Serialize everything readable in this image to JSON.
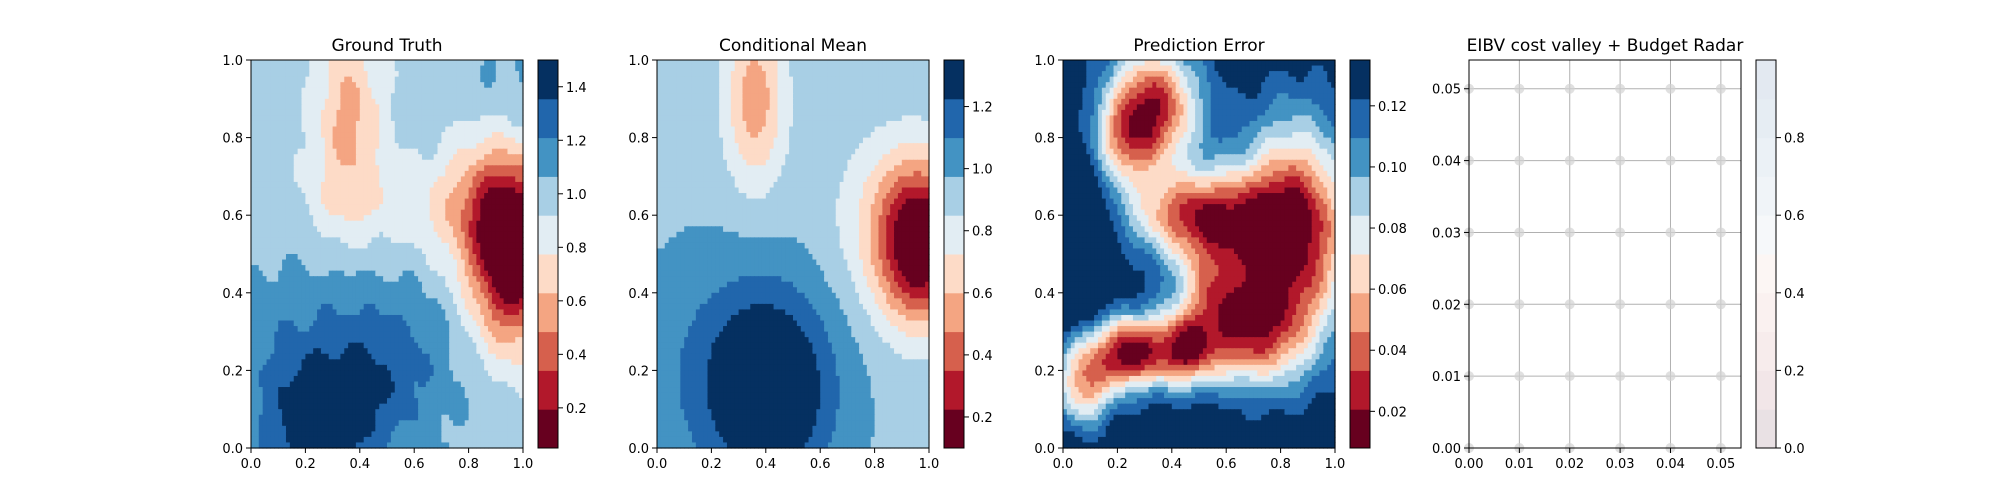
{
  "colormap": [
    "#67001f",
    "#b2182b",
    "#d6604d",
    "#f4a582",
    "#fddbc7",
    "#e2edf3",
    "#a8cfe5",
    "#4393c3",
    "#2166ac",
    "#053061"
  ],
  "chart_data": [
    {
      "type": "heatmap",
      "title": "Ground Truth",
      "xlim": [
        0,
        1
      ],
      "ylim": [
        0,
        1
      ],
      "xticks": [
        0.0,
        0.2,
        0.4,
        0.6,
        0.8,
        1.0
      ],
      "yticks": [
        0.0,
        0.2,
        0.4,
        0.6,
        0.8,
        1.0
      ],
      "xtick_labels": [
        "0.0",
        "0.2",
        "0.4",
        "0.6",
        "0.8",
        "1.0"
      ],
      "ytick_labels": [
        "0.0",
        "0.2",
        "0.4",
        "0.6",
        "0.8",
        "1.0"
      ],
      "field": {
        "base": 1.0,
        "trend_x": 0.0,
        "trend_y": 0.0,
        "bumps": [
          {
            "x": 0.96,
            "y": 0.5,
            "sx": 0.1,
            "sy": 0.16,
            "a": -1.05
          },
          {
            "x": 0.84,
            "y": 0.62,
            "sx": 0.12,
            "sy": 0.14,
            "a": -0.3
          },
          {
            "x": 0.36,
            "y": 0.85,
            "sx": 0.09,
            "sy": 0.17,
            "a": -0.42
          },
          {
            "x": 0.55,
            "y": 0.62,
            "sx": 0.3,
            "sy": 0.08,
            "a": -0.16
          },
          {
            "x": 0.25,
            "y": 0.05,
            "sx": 0.13,
            "sy": 0.12,
            "a": 0.45
          },
          {
            "x": 0.48,
            "y": 0.2,
            "sx": 0.18,
            "sy": 0.16,
            "a": 0.3
          },
          {
            "x": 0.1,
            "y": 0.25,
            "sx": 0.18,
            "sy": 0.18,
            "a": 0.15
          },
          {
            "x": 0.95,
            "y": 0.95,
            "sx": 0.1,
            "sy": 0.12,
            "a": 0.1
          }
        ],
        "noise": 0.04
      },
      "colorbar": {
        "vmin": 0.05,
        "vmax": 1.5,
        "ticks": [
          0.2,
          0.4,
          0.6,
          0.8,
          1.0,
          1.2,
          1.4
        ],
        "tick_labels": [
          "0.2",
          "0.4",
          "0.6",
          "0.8",
          "1.0",
          "1.2",
          "1.4"
        ]
      }
    },
    {
      "type": "heatmap",
      "title": "Conditional Mean",
      "xlim": [
        0,
        1
      ],
      "ylim": [
        0,
        1
      ],
      "xticks": [
        0.0,
        0.2,
        0.4,
        0.6,
        0.8,
        1.0
      ],
      "yticks": [
        0.0,
        0.2,
        0.4,
        0.6,
        0.8,
        1.0
      ],
      "xtick_labels": [
        "0.0",
        "0.2",
        "0.4",
        "0.6",
        "0.8",
        "1.0"
      ],
      "ytick_labels": [
        "0.0",
        "0.2",
        "0.4",
        "0.6",
        "0.8",
        "1.0"
      ],
      "field": {
        "base": 0.95,
        "trend_x": 0.0,
        "trend_y": 0.0,
        "bumps": [
          {
            "x": 0.97,
            "y": 0.52,
            "sx": 0.11,
            "sy": 0.14,
            "a": -0.85
          },
          {
            "x": 0.86,
            "y": 0.6,
            "sx": 0.16,
            "sy": 0.16,
            "a": -0.2
          },
          {
            "x": 0.36,
            "y": 0.9,
            "sx": 0.08,
            "sy": 0.16,
            "a": -0.42
          },
          {
            "x": 0.42,
            "y": 0.15,
            "sx": 0.16,
            "sy": 0.18,
            "a": 0.48
          },
          {
            "x": 0.2,
            "y": 0.2,
            "sx": 0.2,
            "sy": 0.2,
            "a": 0.12
          }
        ],
        "noise": 0.0
      },
      "colorbar": {
        "vmin": 0.1,
        "vmax": 1.35,
        "ticks": [
          0.2,
          0.4,
          0.6,
          0.8,
          1.0,
          1.2
        ],
        "tick_labels": [
          "0.2",
          "0.4",
          "0.6",
          "0.8",
          "1.0",
          "1.2"
        ]
      }
    },
    {
      "type": "heatmap",
      "title": "Prediction Error",
      "xlim": [
        0,
        1
      ],
      "ylim": [
        0,
        1
      ],
      "xticks": [
        0.0,
        0.2,
        0.4,
        0.6,
        0.8,
        1.0
      ],
      "yticks": [
        0.0,
        0.2,
        0.4,
        0.6,
        0.8,
        1.0
      ],
      "xtick_labels": [
        "0.0",
        "0.2",
        "0.4",
        "0.6",
        "0.8",
        "1.0"
      ],
      "ytick_labels": [
        "0.0",
        "0.2",
        "0.4",
        "0.6",
        "0.8",
        "1.0"
      ],
      "field": {
        "base": 0.135,
        "trend_x": 0.0,
        "trend_y": 0.0,
        "bumps": [
          {
            "x": 0.33,
            "y": 0.88,
            "sx": 0.12,
            "sy": 0.11,
            "a": -0.11
          },
          {
            "x": 0.22,
            "y": 0.78,
            "sx": 0.08,
            "sy": 0.08,
            "a": -0.05
          },
          {
            "x": 0.5,
            "y": 0.6,
            "sx": 0.18,
            "sy": 0.08,
            "a": -0.1
          },
          {
            "x": 0.85,
            "y": 0.55,
            "sx": 0.15,
            "sy": 0.2,
            "a": -0.12
          },
          {
            "x": 0.72,
            "y": 0.3,
            "sx": 0.12,
            "sy": 0.1,
            "a": -0.06
          },
          {
            "x": 0.55,
            "y": 0.4,
            "sx": 0.1,
            "sy": 0.1,
            "a": -0.07
          },
          {
            "x": 0.3,
            "y": 0.25,
            "sx": 0.22,
            "sy": 0.07,
            "a": -0.09
          },
          {
            "x": 0.08,
            "y": 0.15,
            "sx": 0.07,
            "sy": 0.07,
            "a": -0.07
          },
          {
            "x": 0.45,
            "y": 0.25,
            "sx": 0.06,
            "sy": 0.06,
            "a": -0.04
          },
          {
            "x": 0.24,
            "y": 0.24,
            "sx": 0.06,
            "sy": 0.06,
            "a": -0.04
          },
          {
            "x": 0.0,
            "y": 0.5,
            "sx": 0.1,
            "sy": 0.16,
            "a": 0.05
          }
        ],
        "noise": 0.004
      },
      "colorbar": {
        "vmin": 0.008,
        "vmax": 0.135,
        "ticks": [
          0.02,
          0.04,
          0.06,
          0.08,
          0.1,
          0.12
        ],
        "tick_labels": [
          "0.02",
          "0.04",
          "0.06",
          "0.08",
          "0.10",
          "0.12"
        ]
      }
    },
    {
      "type": "scatter",
      "title": "EIBV cost valley + Budget Radar",
      "xlim": [
        0,
        0.054
      ],
      "ylim": [
        0,
        0.054
      ],
      "xticks": [
        0.0,
        0.01,
        0.02,
        0.03,
        0.04,
        0.05
      ],
      "yticks": [
        0.0,
        0.01,
        0.02,
        0.03,
        0.04,
        0.05
      ],
      "xtick_labels": [
        "0.00",
        "0.01",
        "0.02",
        "0.03",
        "0.04",
        "0.05"
      ],
      "ytick_labels": [
        "0.00",
        "0.01",
        "0.02",
        "0.03",
        "0.04",
        "0.05"
      ],
      "grid": true,
      "points_x": [
        0.0,
        0.01,
        0.02,
        0.03,
        0.04,
        0.05
      ],
      "points_y": [
        0.0,
        0.01,
        0.02,
        0.03,
        0.04,
        0.05
      ],
      "marker_color": "#d3d3d3",
      "colorbar": {
        "vmin": 0.0,
        "vmax": 1.0,
        "ticks": [
          0.0,
          0.2,
          0.4,
          0.6,
          0.8
        ],
        "tick_labels": [
          "0.0",
          "0.2",
          "0.4",
          "0.6",
          "0.8"
        ],
        "colors": [
          "#e9e1e4",
          "#f2e6e8",
          "#f7ecec",
          "#faf1f0",
          "#fcf6f4",
          "#f6f8fa",
          "#f0f4f8",
          "#ebf1f6",
          "#e6edf3",
          "#e3e9f1"
        ]
      }
    }
  ]
}
